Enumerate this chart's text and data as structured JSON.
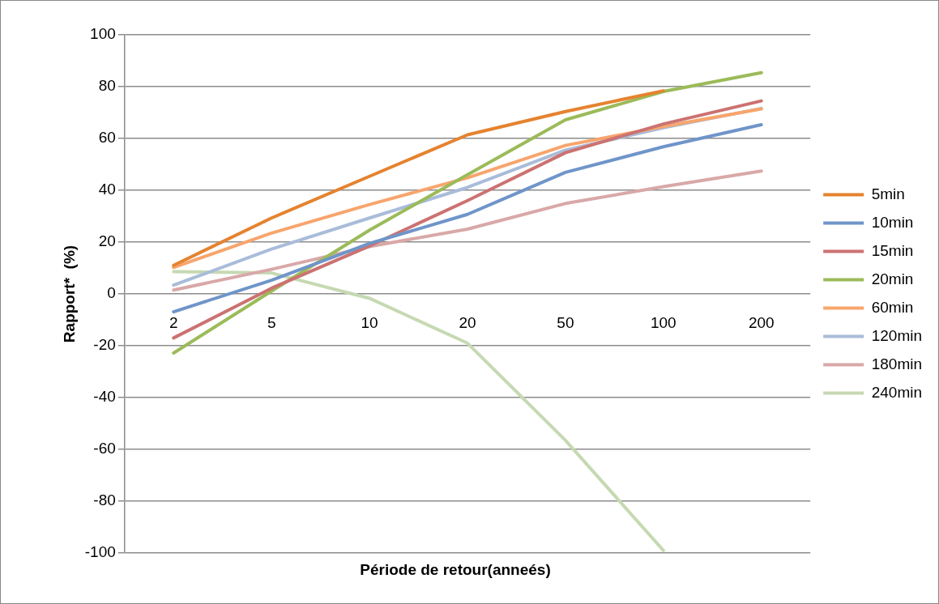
{
  "chart_data": {
    "type": "line",
    "xlabel": "Période de retour(anneés)",
    "ylabel": "Rapport*  (%)",
    "categories": [
      "2",
      "5",
      "10",
      "20",
      "50",
      "100",
      "200"
    ],
    "series": [
      {
        "name": "5min",
        "color": "#e5832f",
        "values": [
          11,
          29.3,
          45.4,
          61.4,
          70.4,
          78.4,
          null
        ]
      },
      {
        "name": "10min",
        "color": "#6f95c9",
        "values": [
          -6.9,
          5.3,
          19.5,
          30.7,
          46.9,
          56.8,
          65.3
        ]
      },
      {
        "name": "15min",
        "color": "#cc7271",
        "values": [
          -17,
          2.2,
          18.5,
          36,
          54.5,
          65.6,
          74.5
        ]
      },
      {
        "name": "20min",
        "color": "#9bbb59",
        "values": [
          -22.8,
          1.1,
          24.6,
          46,
          67.2,
          78.1,
          85.4
        ]
      },
      {
        "name": "60min",
        "color": "#f7a56d",
        "values": [
          10.2,
          23.5,
          34.5,
          44.8,
          57.3,
          64.6,
          71.4
        ]
      },
      {
        "name": "120min",
        "color": "#a9bcd9",
        "values": [
          3.4,
          17.3,
          29.3,
          41.1,
          55.5,
          64.1,
          71.6
        ]
      },
      {
        "name": "180min",
        "color": "#d9a8a8",
        "values": [
          1.5,
          9.5,
          18.3,
          25,
          34.9,
          41.4,
          47.4
        ]
      },
      {
        "name": "240min",
        "color": "#c6d9b2",
        "values": [
          8.6,
          8.1,
          -1.7,
          -19,
          -56.5,
          -99,
          null
        ]
      }
    ],
    "ylim": [
      -100,
      100
    ],
    "yticks": [
      -100,
      -80,
      -60,
      -40,
      -20,
      0,
      20,
      40,
      60,
      80,
      100
    ],
    "grid": "y",
    "legend": "right",
    "marker": "none",
    "line_style": "solid"
  }
}
